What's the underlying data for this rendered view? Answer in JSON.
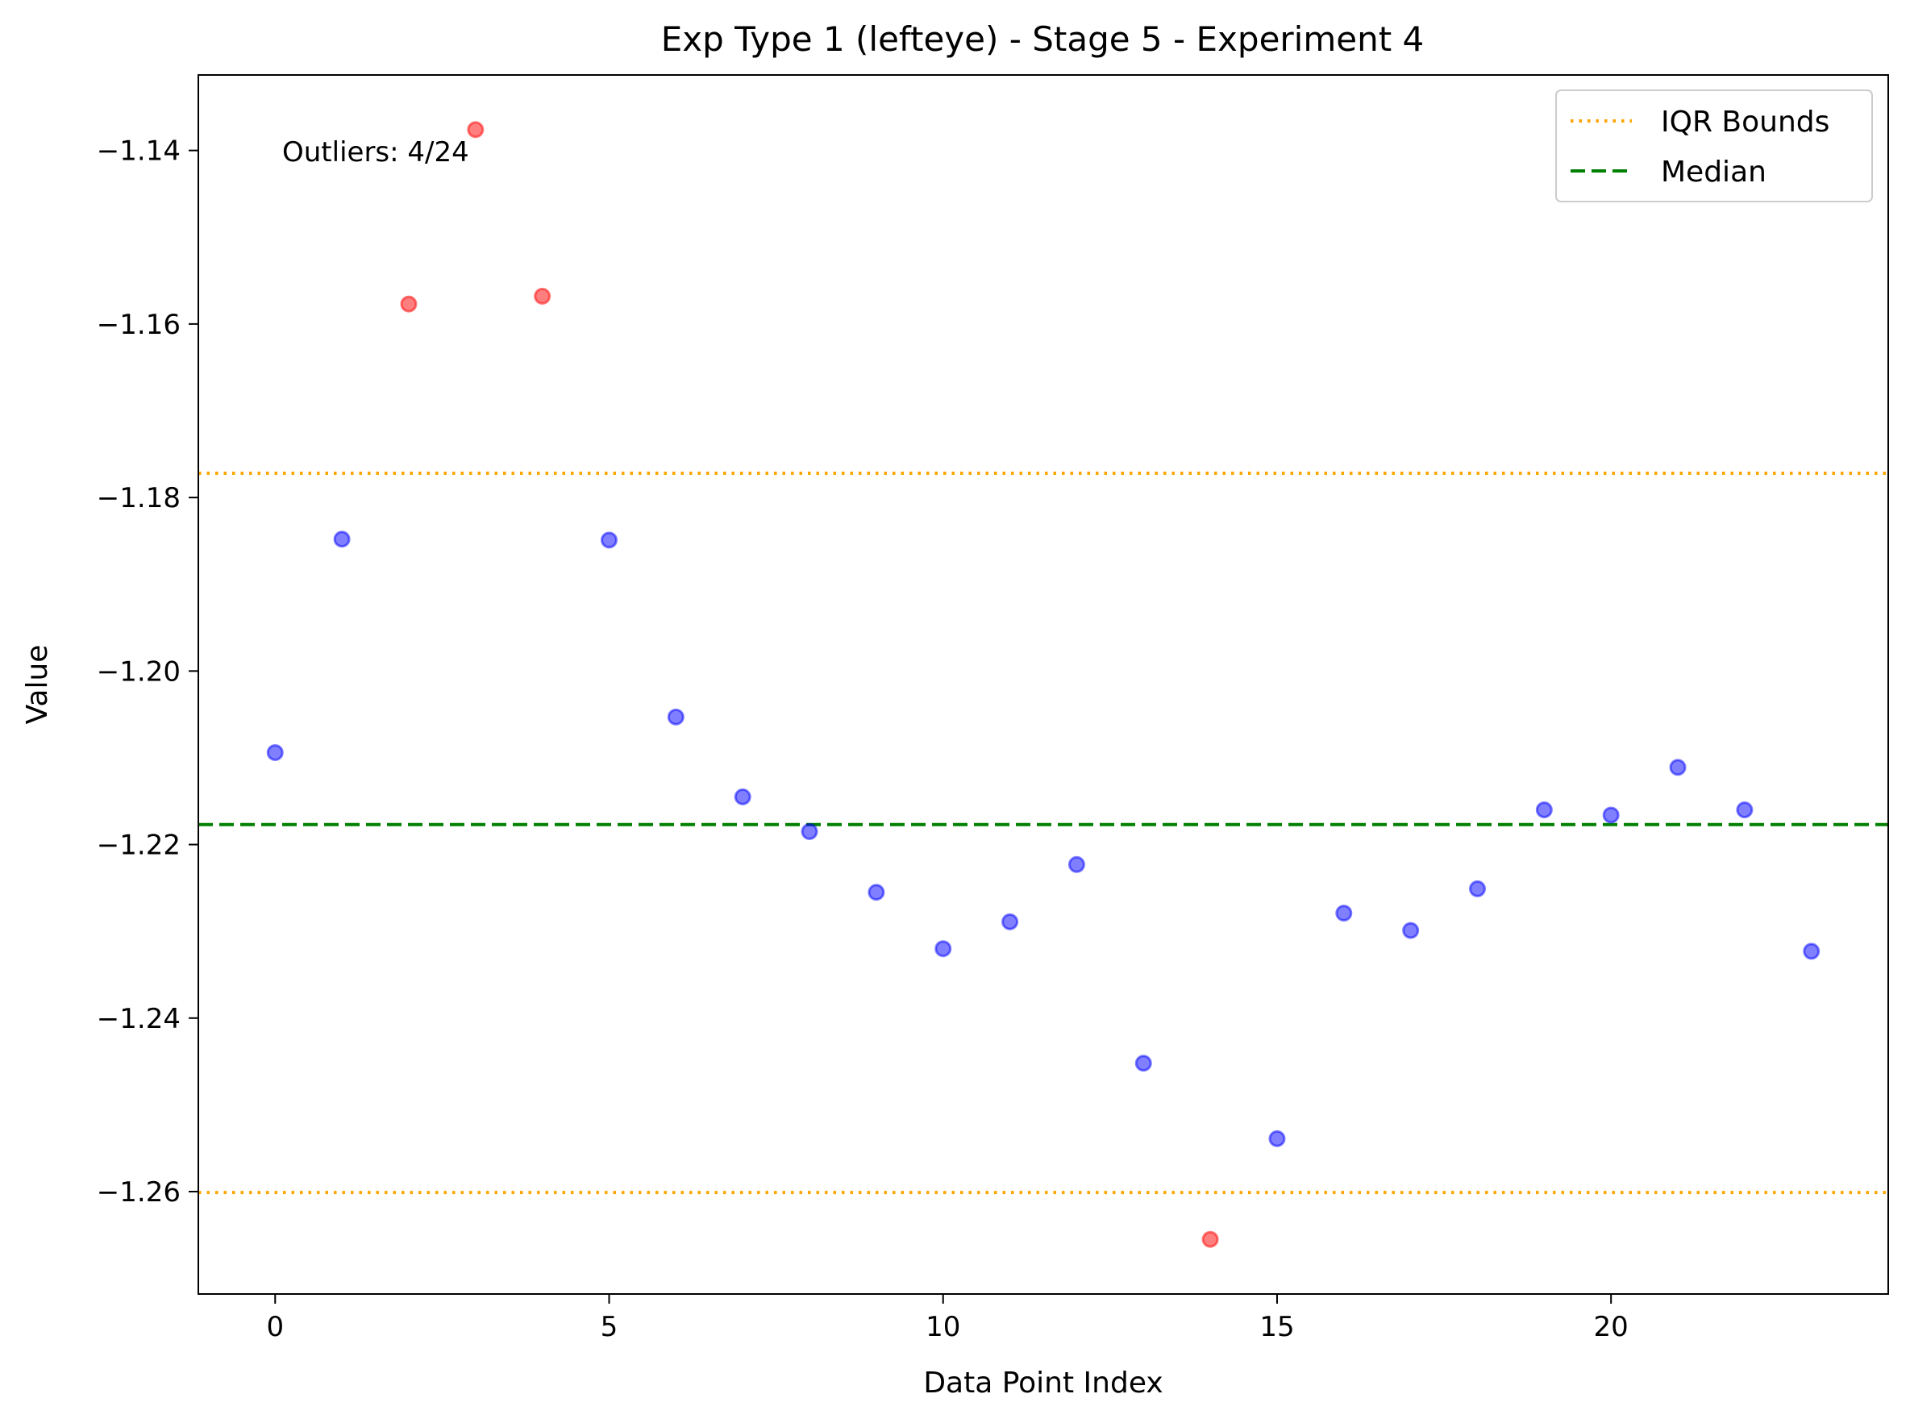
{
  "chart_data": {
    "type": "scatter",
    "title": "Exp Type 1 (lefteye) - Stage 5 - Experiment 4",
    "xlabel": "Data Point Index",
    "ylabel": "Value",
    "xlim": [
      -1.15,
      24.15
    ],
    "ylim": [
      -1.2718,
      -1.1313
    ],
    "xticks": [
      0,
      5,
      10,
      15,
      20
    ],
    "xtick_labels": [
      "0",
      "5",
      "10",
      "15",
      "20"
    ],
    "yticks": [
      -1.26,
      -1.24,
      -1.22,
      -1.2,
      -1.18,
      -1.16,
      -1.14
    ],
    "ytick_labels": [
      "−1.26",
      "−1.24",
      "−1.22",
      "−1.20",
      "−1.18",
      "−1.16",
      "−1.14"
    ],
    "grid": false,
    "legend_position": "top-right",
    "points": [
      {
        "x": 0,
        "y": -1.2094,
        "outlier": false
      },
      {
        "x": 1,
        "y": -1.1848,
        "outlier": false
      },
      {
        "x": 2,
        "y": -1.1577,
        "outlier": true
      },
      {
        "x": 3,
        "y": -1.1376,
        "outlier": true
      },
      {
        "x": 4,
        "y": -1.1568,
        "outlier": true
      },
      {
        "x": 5,
        "y": -1.1849,
        "outlier": false
      },
      {
        "x": 6,
        "y": -1.2053,
        "outlier": false
      },
      {
        "x": 7,
        "y": -1.2145,
        "outlier": false
      },
      {
        "x": 8,
        "y": -1.2185,
        "outlier": false
      },
      {
        "x": 9,
        "y": -1.2255,
        "outlier": false
      },
      {
        "x": 10,
        "y": -1.232,
        "outlier": false
      },
      {
        "x": 11,
        "y": -1.2289,
        "outlier": false
      },
      {
        "x": 12,
        "y": -1.2223,
        "outlier": false
      },
      {
        "x": 13,
        "y": -1.2452,
        "outlier": false
      },
      {
        "x": 14,
        "y": -1.2655,
        "outlier": true
      },
      {
        "x": 15,
        "y": -1.2539,
        "outlier": false
      },
      {
        "x": 16,
        "y": -1.2279,
        "outlier": false
      },
      {
        "x": 17,
        "y": -1.2299,
        "outlier": false
      },
      {
        "x": 18,
        "y": -1.2251,
        "outlier": false
      },
      {
        "x": 19,
        "y": -1.216,
        "outlier": false
      },
      {
        "x": 20,
        "y": -1.2166,
        "outlier": false
      },
      {
        "x": 21,
        "y": -1.2111,
        "outlier": false
      },
      {
        "x": 22,
        "y": -1.216,
        "outlier": false
      },
      {
        "x": 23,
        "y": -1.2323,
        "outlier": false
      }
    ],
    "lines": [
      {
        "name": "IQR Bounds",
        "y": -1.1772,
        "color": "#ffa500",
        "style": "dotted"
      },
      {
        "name": "IQR Bounds",
        "y": -1.2601,
        "color": "#ffa500",
        "style": "dotted"
      },
      {
        "name": "Median",
        "y": -1.2177,
        "color": "#008000",
        "style": "dashed"
      }
    ],
    "legend": [
      {
        "label": "IQR Bounds",
        "color": "#ffa500",
        "style": "dotted"
      },
      {
        "label": "Median",
        "color": "#008000",
        "style": "dashed"
      }
    ],
    "annotation": "Outliers: 4/24",
    "colors": {
      "normal": "#0000ff",
      "outlier": "#ff0000"
    }
  }
}
